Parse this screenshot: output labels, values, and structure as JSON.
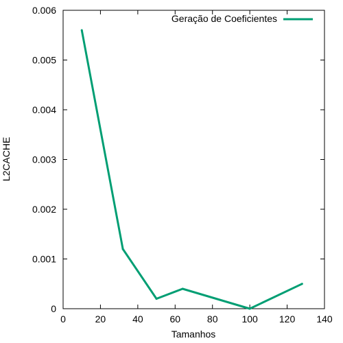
{
  "chart_data": {
    "type": "line",
    "title": "",
    "xlabel": "Tamanhos",
    "ylabel": "L2CACHE",
    "xlim": [
      0,
      140
    ],
    "ylim": [
      0,
      0.006
    ],
    "x_ticks": [
      "0",
      "20",
      "40",
      "60",
      "80",
      "100",
      "120",
      "140"
    ],
    "y_ticks": [
      "0",
      "0.001",
      "0.002",
      "0.003",
      "0.004",
      "0.005",
      "0.006"
    ],
    "grid": false,
    "legend_position": "top-right",
    "series": [
      {
        "name": "Geração de Coeficientes",
        "color": "#009e73",
        "x": [
          10,
          32,
          50,
          64,
          100,
          128
        ],
        "y": [
          0.0056,
          0.0012,
          0.0002,
          0.0004,
          0.0,
          0.0005
        ]
      }
    ]
  }
}
